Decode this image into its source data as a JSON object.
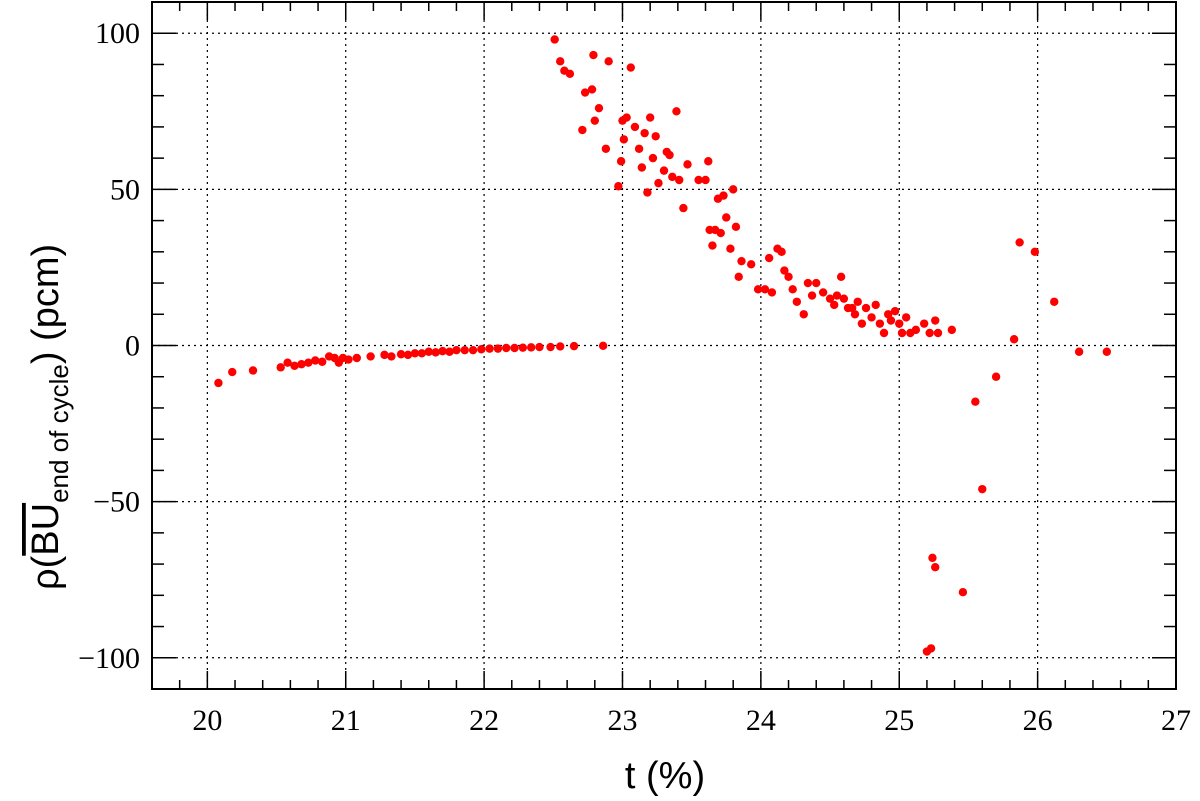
{
  "chart_data": {
    "type": "scatter",
    "title": "",
    "xlabel": "t (%)",
    "ylabel": {
      "prefix": "ρ(",
      "overline": "BU",
      "subscript": "end of cycle",
      "suffix": ") (pcm)"
    },
    "xlim": [
      19.6,
      27.0
    ],
    "ylim": [
      -110,
      110
    ],
    "xticks": [
      20,
      21,
      22,
      23,
      24,
      25,
      26,
      27
    ],
    "yticks": [
      -100,
      -50,
      0,
      50,
      100
    ],
    "ytick_labels": [
      "−100",
      "−50",
      "0",
      "50",
      "100"
    ],
    "grid": true,
    "marker_color": "#ff0000",
    "series": [
      {
        "name": "points",
        "points": [
          [
            20.08,
            -12
          ],
          [
            20.18,
            -8.5
          ],
          [
            20.33,
            -8
          ],
          [
            20.53,
            -7
          ],
          [
            20.58,
            -5.5
          ],
          [
            20.63,
            -6.5
          ],
          [
            20.68,
            -6
          ],
          [
            20.73,
            -5.5
          ],
          [
            20.78,
            -4.8
          ],
          [
            20.83,
            -5.2
          ],
          [
            20.88,
            -3.5
          ],
          [
            20.92,
            -4
          ],
          [
            20.95,
            -5.5
          ],
          [
            20.98,
            -4
          ],
          [
            21.02,
            -4.5
          ],
          [
            21.08,
            -4
          ],
          [
            21.18,
            -3.5
          ],
          [
            21.28,
            -3
          ],
          [
            21.33,
            -3.5
          ],
          [
            21.4,
            -2.8
          ],
          [
            21.45,
            -3
          ],
          [
            21.5,
            -2.5
          ],
          [
            21.55,
            -2.5
          ],
          [
            21.6,
            -2
          ],
          [
            21.65,
            -2.2
          ],
          [
            21.7,
            -1.8
          ],
          [
            21.75,
            -2
          ],
          [
            21.8,
            -1.5
          ],
          [
            21.86,
            -1.5
          ],
          [
            21.92,
            -1.5
          ],
          [
            21.98,
            -1.2
          ],
          [
            22.04,
            -1
          ],
          [
            22.1,
            -1
          ],
          [
            22.16,
            -0.8
          ],
          [
            22.22,
            -0.8
          ],
          [
            22.28,
            -0.7
          ],
          [
            22.34,
            -0.6
          ],
          [
            22.4,
            -0.5
          ],
          [
            22.48,
            -0.5
          ],
          [
            22.55,
            -0.3
          ],
          [
            22.65,
            -0.2
          ],
          [
            22.86,
            -0.1
          ],
          [
            22.51,
            98
          ],
          [
            22.55,
            91
          ],
          [
            22.58,
            88
          ],
          [
            22.62,
            87
          ],
          [
            22.71,
            69
          ],
          [
            22.73,
            81
          ],
          [
            22.78,
            82
          ],
          [
            22.79,
            93
          ],
          [
            22.8,
            72
          ],
          [
            22.83,
            76
          ],
          [
            22.88,
            63
          ],
          [
            22.9,
            91
          ],
          [
            22.97,
            51
          ],
          [
            22.99,
            59
          ],
          [
            23.0,
            72
          ],
          [
            23.01,
            66
          ],
          [
            23.03,
            73
          ],
          [
            23.06,
            89
          ],
          [
            23.09,
            70
          ],
          [
            23.12,
            63
          ],
          [
            23.14,
            57
          ],
          [
            23.16,
            68
          ],
          [
            23.18,
            49
          ],
          [
            23.2,
            73
          ],
          [
            23.22,
            60
          ],
          [
            23.24,
            67
          ],
          [
            23.26,
            52
          ],
          [
            23.3,
            56
          ],
          [
            23.32,
            62
          ],
          [
            23.34,
            61
          ],
          [
            23.36,
            54
          ],
          [
            23.39,
            75
          ],
          [
            23.41,
            53
          ],
          [
            23.44,
            44
          ],
          [
            23.47,
            58
          ],
          [
            23.55,
            53
          ],
          [
            23.6,
            53
          ],
          [
            23.62,
            59
          ],
          [
            23.63,
            37
          ],
          [
            23.65,
            32
          ],
          [
            23.67,
            37
          ],
          [
            23.69,
            47
          ],
          [
            23.71,
            36
          ],
          [
            23.73,
            48
          ],
          [
            23.75,
            41
          ],
          [
            23.78,
            31
          ],
          [
            23.8,
            50
          ],
          [
            23.82,
            38
          ],
          [
            23.84,
            22
          ],
          [
            23.86,
            27
          ],
          [
            23.93,
            26
          ],
          [
            23.98,
            18
          ],
          [
            24.03,
            18
          ],
          [
            24.06,
            28
          ],
          [
            24.08,
            17
          ],
          [
            24.12,
            31
          ],
          [
            24.15,
            30
          ],
          [
            24.17,
            24
          ],
          [
            24.2,
            22
          ],
          [
            24.23,
            18
          ],
          [
            24.26,
            14
          ],
          [
            24.31,
            10
          ],
          [
            24.34,
            20
          ],
          [
            24.37,
            16
          ],
          [
            24.4,
            20
          ],
          [
            24.45,
            17
          ],
          [
            24.5,
            15
          ],
          [
            24.53,
            13
          ],
          [
            24.55,
            16
          ],
          [
            24.58,
            22
          ],
          [
            24.6,
            15
          ],
          [
            24.63,
            12
          ],
          [
            24.66,
            12
          ],
          [
            24.68,
            10
          ],
          [
            24.7,
            14
          ],
          [
            24.73,
            7
          ],
          [
            24.76,
            12
          ],
          [
            24.8,
            9
          ],
          [
            24.83,
            13
          ],
          [
            24.86,
            7
          ],
          [
            24.89,
            4
          ],
          [
            24.92,
            10
          ],
          [
            24.94,
            8
          ],
          [
            24.97,
            11
          ],
          [
            25.0,
            7
          ],
          [
            25.02,
            4
          ],
          [
            25.05,
            9
          ],
          [
            25.08,
            4
          ],
          [
            25.12,
            5
          ],
          [
            25.18,
            7
          ],
          [
            25.22,
            4
          ],
          [
            25.26,
            8
          ],
          [
            25.28,
            4
          ],
          [
            25.38,
            5
          ],
          [
            25.2,
            -98
          ],
          [
            25.23,
            -97
          ],
          [
            25.24,
            -68
          ],
          [
            25.26,
            -71
          ],
          [
            25.46,
            -79
          ],
          [
            25.55,
            -18
          ],
          [
            25.6,
            -46
          ],
          [
            25.7,
            -10
          ],
          [
            25.83,
            2
          ],
          [
            25.87,
            33
          ],
          [
            25.98,
            30
          ],
          [
            26.12,
            14
          ],
          [
            26.3,
            -2
          ],
          [
            26.5,
            -2
          ]
        ]
      }
    ]
  }
}
